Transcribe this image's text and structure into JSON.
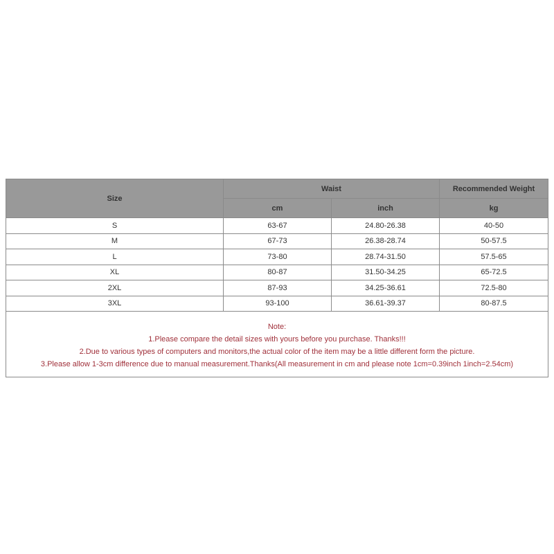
{
  "headers": {
    "size": "Size",
    "waist": "Waist",
    "weight": "Recommended Weight",
    "cm": "cm",
    "inch": "inch",
    "kg": "kg"
  },
  "rows": [
    {
      "size": "S",
      "cm": "63-67",
      "inch": "24.80-26.38",
      "kg": "40-50"
    },
    {
      "size": "M",
      "cm": "67-73",
      "inch": "26.38-28.74",
      "kg": "50-57.5"
    },
    {
      "size": "L",
      "cm": "73-80",
      "inch": "28.74-31.50",
      "kg": "57.5-65"
    },
    {
      "size": "XL",
      "cm": "80-87",
      "inch": "31.50-34.25",
      "kg": "65-72.5"
    },
    {
      "size": "2XL",
      "cm": "87-93",
      "inch": "34.25-36.61",
      "kg": "72.5-80"
    },
    {
      "size": "3XL",
      "cm": "93-100",
      "inch": "36.61-39.37",
      "kg": "80-87.5"
    }
  ],
  "notes": {
    "title": "Note:",
    "lines": [
      "1.Please compare the detail sizes with yours before you purchase. Thanks!!!",
      "2.Due to various types of computers and monitors,the actual color of the item may be a little different form the picture.",
      "3.Please allow 1-3cm difference due to manual measurement.Thanks(All measurement in cm and please note 1cm=0.39inch 1inch=2.54cm)"
    ]
  },
  "colors": {
    "header_bg": "#999999",
    "note_text": "#a0303a",
    "border": "#8a8a8a"
  }
}
